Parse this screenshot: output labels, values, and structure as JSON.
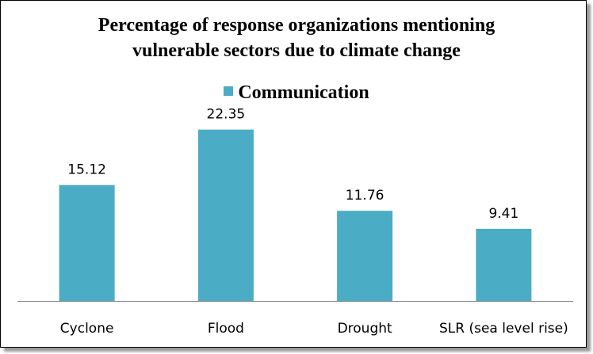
{
  "chart_data": {
    "type": "bar",
    "title_lines": [
      "Percentage of response organizations mentioning",
      "vulnerable sectors due to climate change"
    ],
    "categories": [
      "Cyclone",
      "Flood",
      "Drought",
      "SLR (sea level rise)"
    ],
    "series": [
      {
        "name": "Communication",
        "values": [
          15.12,
          22.35,
          11.76,
          9.41
        ],
        "color": "#4bacc6"
      }
    ],
    "data_labels": [
      "15.12",
      "22.35",
      "11.76",
      "9.41"
    ],
    "ylim": [
      0,
      25
    ],
    "grid": false,
    "legend_position": "top",
    "axis_color": "#868686"
  }
}
